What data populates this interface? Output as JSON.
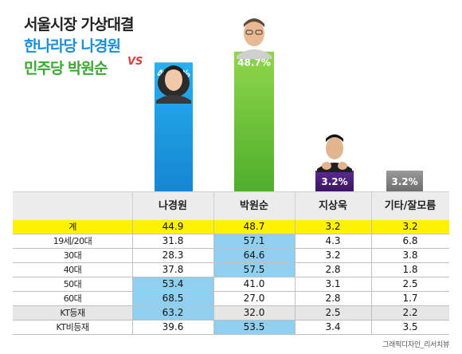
{
  "title": {
    "line1": "서울시장 가상대결",
    "line2": "한나라당 나경원",
    "line3": "민주당 박원순",
    "vs": "VS"
  },
  "colors": {
    "na": "#1ea0e6",
    "park": "#6cc43c",
    "ji": "#4a1f7a",
    "etc": "#8a8a8a",
    "highlight": "#8fd0f0",
    "total_row": "#fff200"
  },
  "chart_data": {
    "type": "bar",
    "categories": [
      "나경원",
      "박원순",
      "지상욱",
      "기타/잘모름"
    ],
    "values": [
      44.9,
      48.7,
      3.2,
      3.2
    ],
    "value_labels": [
      "44.9%",
      "48.7%",
      "3.2%",
      "3.2%"
    ],
    "title": "서울시장 가상대결",
    "ylim": [
      0,
      50
    ]
  },
  "table": {
    "headers": [
      "",
      "나경원",
      "박원순",
      "지상욱",
      "기타/잘모름"
    ],
    "rows": [
      {
        "label": "계",
        "values": [
          "44.9",
          "48.7",
          "3.2",
          "3.2"
        ],
        "style": "total",
        "hl": []
      },
      {
        "label": "19세/20대",
        "values": [
          "31.8",
          "57.1",
          "4.3",
          "6.8"
        ],
        "style": "",
        "hl": [
          1
        ]
      },
      {
        "label": "30대",
        "values": [
          "28.3",
          "64.6",
          "3.2",
          "3.8"
        ],
        "style": "",
        "hl": [
          1
        ]
      },
      {
        "label": "40대",
        "values": [
          "37.8",
          "57.5",
          "2.8",
          "1.8"
        ],
        "style": "",
        "hl": [
          1
        ]
      },
      {
        "label": "50대",
        "values": [
          "53.4",
          "41.0",
          "3.1",
          "2.5"
        ],
        "style": "",
        "hl": [
          0
        ]
      },
      {
        "label": "60대",
        "values": [
          "68.5",
          "27.0",
          "2.8",
          "1.7"
        ],
        "style": "",
        "hl": [
          0
        ]
      },
      {
        "label": "KT등재",
        "values": [
          "63.2",
          "32.0",
          "2.5",
          "2.2"
        ],
        "style": "alt",
        "hl": [
          0
        ]
      },
      {
        "label": "KT비등재",
        "values": [
          "39.6",
          "53.5",
          "3.4",
          "3.5"
        ],
        "style": "",
        "hl": [
          1
        ]
      }
    ]
  },
  "credit": "그래픽디자인_리서치뷰"
}
